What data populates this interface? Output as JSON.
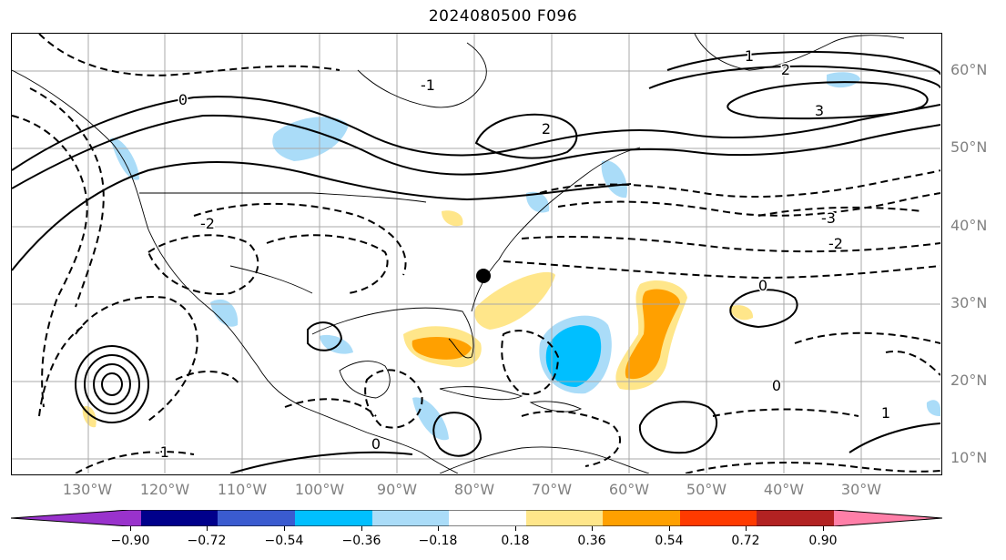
{
  "title": "2024080500 F096",
  "map": {
    "lat_labels": [
      "60°N",
      "50°N",
      "40°N",
      "30°N",
      "20°N",
      "10°N"
    ],
    "lon_labels": [
      "130°W",
      "120°W",
      "110°W",
      "100°W",
      "90°W",
      "80°W",
      "70°W",
      "60°W",
      "50°W",
      "40°W",
      "30°W"
    ],
    "contour_labels": [
      "0",
      "-1",
      "1",
      "2",
      "-2",
      "3",
      "-3",
      "0",
      "0",
      "-1",
      "1",
      "0",
      "2",
      "-2"
    ],
    "grid": true,
    "storm_marker": "black-dot"
  },
  "colorbar": {
    "ticks": [
      "−0.90",
      "−0.72",
      "−0.54",
      "−0.36",
      "−0.18",
      "0.18",
      "0.36",
      "0.54",
      "0.72",
      "0.90"
    ],
    "colors": [
      "#9932cc",
      "#00008b",
      "#3a5bd0",
      "#00bfff",
      "#aadcf8",
      "#ffffff",
      "#ffe68a",
      "#ffa000",
      "#ff3a00",
      "#b22222",
      "#ff7fa8"
    ],
    "extend": "both"
  }
}
